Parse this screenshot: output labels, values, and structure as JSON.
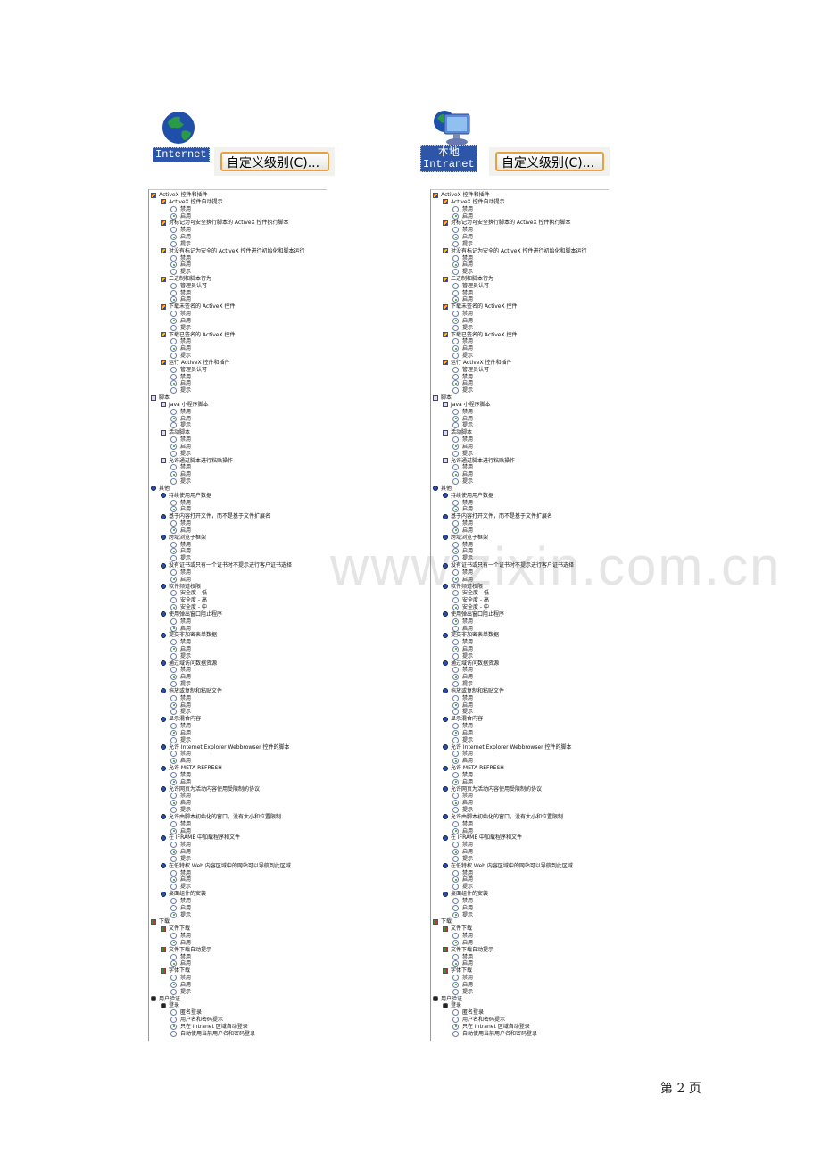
{
  "panels": [
    {
      "zone_label_lines": [
        "Internet"
      ],
      "zone_icon": "globe-icon",
      "button_label": "自定义级别(C)..."
    },
    {
      "zone_label_lines": [
        "本地",
        "Intranet"
      ],
      "zone_icon": "globe-monitor-icon",
      "button_label": "自定义级别(C)..."
    }
  ],
  "categories": [
    {
      "name": "ActiveX 控件和插件",
      "icon": "activex",
      "items": [
        {
          "name": "ActiveX 控件自动提示",
          "options": [
            "禁用",
            "启用"
          ],
          "sel": [
            1,
            1
          ]
        },
        {
          "name": "对标记为可安全执行脚本的 ActiveX 控件执行脚本",
          "options": [
            "禁用",
            "启用",
            "提示"
          ],
          "sel": [
            1,
            1
          ]
        },
        {
          "name": "对没有标记为安全的 ActiveX 控件进行初始化和脚本运行",
          "options": [
            "禁用",
            "启用",
            "提示"
          ],
          "sel": [
            1,
            1
          ]
        },
        {
          "name": "二进制和脚本行为",
          "options": [
            "管理员认可",
            "禁用",
            "启用"
          ],
          "sel": [
            2,
            2
          ]
        },
        {
          "name": "下载未签名的 ActiveX 控件",
          "options": [
            "禁用",
            "启用",
            "提示"
          ],
          "sel": [
            1,
            1
          ]
        },
        {
          "name": "下载已签名的 ActiveX 控件",
          "options": [
            "禁用",
            "启用",
            "提示"
          ],
          "sel": [
            1,
            1
          ]
        },
        {
          "name": "运行 ActiveX 控件和插件",
          "options": [
            "管理员认可",
            "禁用",
            "启用",
            "提示"
          ],
          "sel": [
            2,
            2
          ]
        }
      ]
    },
    {
      "name": "脚本",
      "icon": "script",
      "items": [
        {
          "name": "Java 小程序脚本",
          "options": [
            "禁用",
            "启用",
            "提示"
          ],
          "sel": [
            1,
            1
          ]
        },
        {
          "name": "活动脚本",
          "options": [
            "禁用",
            "启用",
            "提示"
          ],
          "sel": [
            1,
            1
          ]
        },
        {
          "name": "允许通过脚本进行粘贴操作",
          "options": [
            "禁用",
            "启用",
            "提示"
          ],
          "sel": [
            1,
            1
          ]
        }
      ]
    },
    {
      "name": "其他",
      "icon": "misc",
      "items": [
        {
          "name": "持续使用用户数据",
          "options": [
            "禁用",
            "启用"
          ],
          "sel": [
            1,
            1
          ]
        },
        {
          "name": "基于内容打开文件，而不是基于文件扩展名",
          "options": [
            "禁用",
            "启用"
          ],
          "sel": [
            1,
            1
          ]
        },
        {
          "name": "跨域浏览子框架",
          "options": [
            "禁用",
            "启用",
            "提示"
          ],
          "sel": [
            1,
            1
          ]
        },
        {
          "name": "没有证书或只有一个证书时不提示进行客户证书选择",
          "options": [
            "禁用",
            "启用"
          ],
          "sel": [
            1,
            1
          ]
        },
        {
          "name": "软件频道权限",
          "options": [
            "安全度 - 低",
            "安全度 - 高",
            "安全度 - 中"
          ],
          "sel": [
            2,
            2
          ]
        },
        {
          "name": "使用弹出窗口阻止程序",
          "options": [
            "禁用",
            "启用"
          ],
          "sel": [
            1,
            0
          ]
        },
        {
          "name": "提交非加密表单数据",
          "options": [
            "禁用",
            "启用",
            "提示"
          ],
          "sel": [
            1,
            1
          ]
        },
        {
          "name": "通过域访问数据资源",
          "options": [
            "禁用",
            "启用",
            "提示"
          ],
          "sel": [
            1,
            1
          ]
        },
        {
          "name": "拖放或复制和粘贴文件",
          "options": [
            "禁用",
            "启用",
            "提示"
          ],
          "sel": [
            1,
            1
          ]
        },
        {
          "name": "显示混合内容",
          "options": [
            "禁用",
            "启用",
            "提示"
          ],
          "sel": [
            1,
            1
          ]
        },
        {
          "name": "允许 Internet Explorer Webbrowser 控件的脚本",
          "options": [
            "禁用",
            "启用"
          ],
          "sel": [
            1,
            1
          ]
        },
        {
          "name": "允许 META REFRESH",
          "options": [
            "禁用",
            "启用"
          ],
          "sel": [
            1,
            1
          ]
        },
        {
          "name": "允许网页为活动内容使用受限制的协议",
          "options": [
            "禁用",
            "启用",
            "提示"
          ],
          "sel": [
            1,
            1
          ]
        },
        {
          "name": "允许由脚本初始化的窗口，没有大小和位置限制",
          "options": [
            "禁用",
            "启用"
          ],
          "sel": [
            1,
            1
          ]
        },
        {
          "name": "在 IFRAME 中加载程序和文件",
          "options": [
            "禁用",
            "启用",
            "提示"
          ],
          "sel": [
            1,
            1
          ]
        },
        {
          "name": "在低特权 Web 内容区域中的网站可以导航到此区域",
          "options": [
            "禁用",
            "启用",
            "提示"
          ],
          "sel": [
            1,
            1
          ]
        },
        {
          "name": "桌面组件的安装",
          "options": [
            "禁用",
            "启用",
            "提示"
          ],
          "sel": [
            2,
            2
          ]
        }
      ]
    },
    {
      "name": "下载",
      "icon": "download",
      "items": [
        {
          "name": "文件下载",
          "options": [
            "禁用",
            "启用"
          ],
          "sel": [
            1,
            1
          ]
        },
        {
          "name": "文件下载自动提示",
          "options": [
            "禁用",
            "启用"
          ],
          "sel": [
            1,
            1
          ]
        },
        {
          "name": "字体下载",
          "options": [
            "禁用",
            "启用",
            "提示"
          ],
          "sel": [
            1,
            1
          ]
        }
      ]
    },
    {
      "name": "用户验证",
      "icon": "auth",
      "items": [
        {
          "name": "登录",
          "options": [
            "匿名登录",
            "用户名和密码提示",
            "只在 Intranet 区域自动登录",
            "自动使用当前用户名和密码登录"
          ],
          "sel": [
            2,
            2
          ]
        }
      ]
    }
  ],
  "watermark": "www.zixin.com.cn",
  "footer": {
    "page_label": "第 2 页"
  }
}
